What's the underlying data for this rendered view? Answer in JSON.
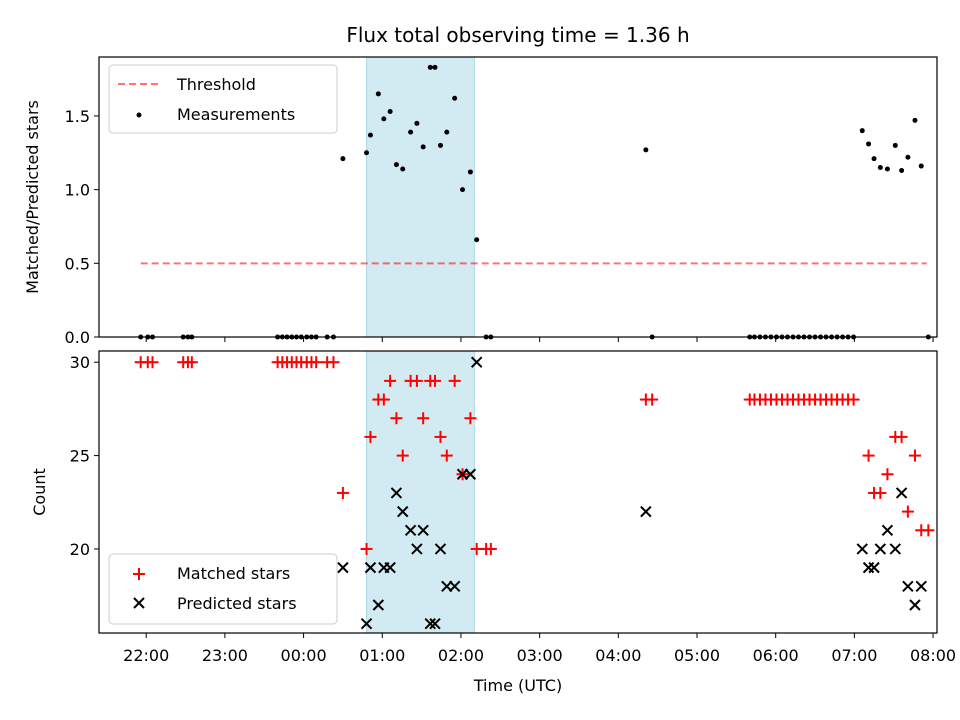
{
  "chart_data": [
    {
      "type": "scatter",
      "title": "Flux total observing time = 1.36 h",
      "xlabel": "",
      "ylabel": "Matched/Predicted stars",
      "ylim": [
        0,
        1.9
      ],
      "yticks": [
        0.0,
        0.5,
        1.0,
        1.5
      ],
      "ytick_labels": [
        "0.0",
        "0.5",
        "1.0",
        "1.5"
      ],
      "xlim": [
        -2.6,
        8.05
      ],
      "xticks": [
        -2,
        -1,
        0,
        1,
        2,
        3,
        4,
        5,
        6,
        7,
        8
      ],
      "xtick_labels": [
        "22:00",
        "23:00",
        "00:00",
        "01:00",
        "02:00",
        "03:00",
        "04:00",
        "05:00",
        "06:00",
        "07:00",
        "08:00"
      ],
      "show_xtick_labels": false,
      "grid": false,
      "legend_placement": "upper left",
      "shaded_region": {
        "x": [
          0.8,
          2.17
        ],
        "color": "#add8e6"
      },
      "threshold": {
        "name": "Threshold",
        "value": 0.5,
        "x": [
          -2.07,
          7.92
        ],
        "color": "#ff0000"
      },
      "series": [
        {
          "name": "Measurements",
          "marker": "dot",
          "color": "#000000",
          "x": [
            -2.07,
            -1.98,
            -1.92,
            -1.53,
            -1.47,
            -1.42,
            -0.33,
            -0.27,
            -0.21,
            -0.15,
            -0.09,
            -0.03,
            0.04,
            0.1,
            0.16,
            0.3,
            0.38,
            0.5,
            0.8,
            0.85,
            0.95,
            1.02,
            1.1,
            1.18,
            1.26,
            1.36,
            1.44,
            1.52,
            1.61,
            1.67,
            1.74,
            1.82,
            1.92,
            2.02,
            2.12,
            2.2,
            2.32,
            2.38,
            4.35,
            4.43,
            5.67,
            5.73,
            5.8,
            5.87,
            5.94,
            6.01,
            6.08,
            6.15,
            6.22,
            6.29,
            6.36,
            6.43,
            6.5,
            6.57,
            6.64,
            6.71,
            6.78,
            6.85,
            6.92,
            6.99,
            7.1,
            7.18,
            7.25,
            7.33,
            7.42,
            7.52,
            7.6,
            7.68,
            7.77,
            7.85,
            7.94
          ],
          "y": [
            0,
            0,
            0,
            0,
            0,
            0,
            0,
            0,
            0,
            0,
            0,
            0,
            0,
            0,
            0,
            0,
            0,
            1.21,
            1.25,
            1.37,
            1.65,
            1.48,
            1.53,
            1.17,
            1.14,
            1.39,
            1.45,
            1.29,
            1.83,
            1.83,
            1.3,
            1.39,
            1.62,
            1.0,
            1.12,
            0.66,
            0,
            0,
            1.27,
            0,
            0,
            0,
            0,
            0,
            0,
            0,
            0,
            0,
            0,
            0,
            0,
            0,
            0,
            0,
            0,
            0,
            0,
            0,
            0,
            0,
            1.4,
            1.31,
            1.21,
            1.15,
            1.14,
            1.3,
            1.13,
            1.22,
            1.47,
            1.16,
            0
          ]
        }
      ]
    },
    {
      "type": "scatter",
      "title": "",
      "xlabel": "Time (UTC)",
      "ylabel": "Count",
      "ylim": [
        15.5,
        30.6
      ],
      "yticks": [
        20,
        25,
        30
      ],
      "ytick_labels": [
        "20",
        "25",
        "30"
      ],
      "xlim": [
        -2.6,
        8.05
      ],
      "xticks": [
        -2,
        -1,
        0,
        1,
        2,
        3,
        4,
        5,
        6,
        7,
        8
      ],
      "xtick_labels": [
        "22:00",
        "23:00",
        "00:00",
        "01:00",
        "02:00",
        "03:00",
        "04:00",
        "05:00",
        "06:00",
        "07:00",
        "08:00"
      ],
      "show_xtick_labels": true,
      "grid": false,
      "legend_placement": "lower left",
      "shaded_region": {
        "x": [
          0.8,
          2.17
        ],
        "color": "#add8e6"
      },
      "series": [
        {
          "name": "Matched stars",
          "marker": "plus",
          "color": "#ff0000",
          "x": [
            -2.07,
            -1.98,
            -1.92,
            -1.53,
            -1.47,
            -1.42,
            -0.33,
            -0.27,
            -0.21,
            -0.15,
            -0.09,
            -0.03,
            0.04,
            0.1,
            0.16,
            0.3,
            0.38,
            0.5,
            0.8,
            0.85,
            0.95,
            1.02,
            1.1,
            1.18,
            1.26,
            1.36,
            1.44,
            1.52,
            1.61,
            1.67,
            1.74,
            1.82,
            1.92,
            2.02,
            2.12,
            2.2,
            2.32,
            2.38,
            4.35,
            4.43,
            5.67,
            5.73,
            5.8,
            5.87,
            5.94,
            6.01,
            6.08,
            6.15,
            6.22,
            6.29,
            6.36,
            6.43,
            6.5,
            6.57,
            6.64,
            6.71,
            6.78,
            6.85,
            6.92,
            6.99,
            7.18,
            7.25,
            7.33,
            7.42,
            7.52,
            7.6,
            7.68,
            7.77,
            7.85,
            7.94
          ],
          "y": [
            30,
            30,
            30,
            30,
            30,
            30,
            30,
            30,
            30,
            30,
            30,
            30,
            30,
            30,
            30,
            30,
            30,
            23,
            20,
            26,
            28,
            28,
            29,
            27,
            25,
            29,
            29,
            27,
            29,
            29,
            26,
            25,
            29,
            24,
            27,
            20,
            20,
            20,
            28,
            28,
            28,
            28,
            28,
            28,
            28,
            28,
            28,
            28,
            28,
            28,
            28,
            28,
            28,
            28,
            28,
            28,
            28,
            28,
            28,
            28,
            25,
            23,
            23,
            24,
            26,
            26,
            22,
            25,
            21,
            21
          ]
        },
        {
          "name": "Predicted stars",
          "marker": "x",
          "color": "#000000",
          "x": [
            0.5,
            0.8,
            0.85,
            0.95,
            1.02,
            1.1,
            1.18,
            1.26,
            1.36,
            1.44,
            1.52,
            1.61,
            1.67,
            1.74,
            1.82,
            1.92,
            2.02,
            2.12,
            2.2,
            4.35,
            7.1,
            7.18,
            7.25,
            7.33,
            7.42,
            7.52,
            7.6,
            7.68,
            7.77,
            7.85
          ],
          "y": [
            19,
            16,
            19,
            17,
            19,
            19,
            23,
            22,
            21,
            20,
            21,
            16,
            16,
            20,
            18,
            18,
            24,
            24,
            30,
            22,
            20,
            19,
            19,
            20,
            21,
            20,
            23,
            18,
            17,
            18
          ]
        }
      ]
    }
  ]
}
